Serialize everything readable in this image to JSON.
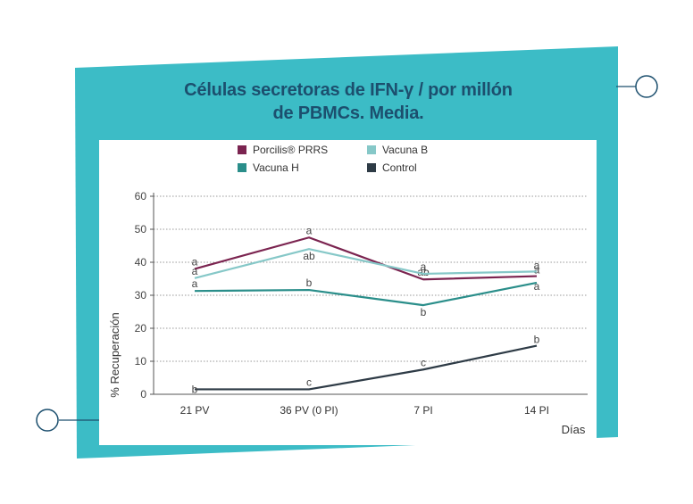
{
  "title_line1": "Células secretoras de IFN-γ / por millón",
  "title_line2": "de PBMCs. Media.",
  "colors": {
    "panel": "#3cbcc6",
    "title": "#1c4f6e"
  },
  "chart_data": {
    "type": "line",
    "categories": [
      "21 PV",
      "36 PV (0 PI)",
      "7 PI",
      "14 PI"
    ],
    "xlabel": "Días",
    "ylabel": "% Recuperación",
    "ylim": [
      0,
      60
    ],
    "yticks": [
      "0",
      "10",
      "20",
      "30",
      "40",
      "50",
      "60"
    ],
    "grid": "dotted horizontal",
    "legend_position": "top",
    "series": [
      {
        "name": "Porcilis® PRRS",
        "color": "#7b2450",
        "values": [
          38,
          47.5,
          34.8,
          35.8
        ],
        "labels": [
          "a",
          "a",
          "ab",
          "a"
        ]
      },
      {
        "name": "Vacuna B",
        "color": "#86c8c8",
        "values": [
          35.2,
          44,
          36.5,
          37.2
        ],
        "labels": [
          "a",
          "ab",
          "a",
          "a"
        ]
      },
      {
        "name": "Vacuna H",
        "color": "#2a8e8a",
        "values": [
          31.3,
          31.6,
          27,
          33.8
        ],
        "labels": [
          "a",
          "b",
          "b",
          "a"
        ]
      },
      {
        "name": "Control",
        "color": "#2e3b46",
        "values": [
          1.5,
          1.5,
          7.5,
          14.7
        ],
        "labels": [
          "b",
          "c",
          "c",
          "b"
        ]
      }
    ]
  }
}
